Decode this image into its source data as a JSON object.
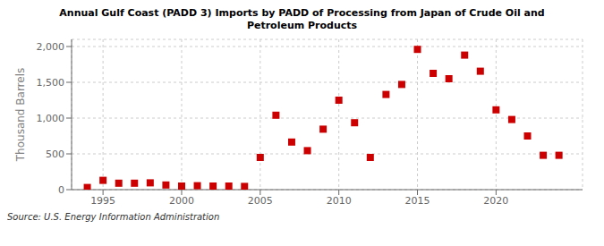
{
  "chart_data": {
    "type": "scatter",
    "title": "Annual Gulf Coast (PADD 3) Imports by PADD of Processing from Japan of Crude Oil and\nPetroleum Products",
    "ylabel": "Thousand Barrels",
    "annotation": "Source: U.S. Energy Information Administration",
    "x": [
      1994,
      1995,
      1996,
      1997,
      1998,
      1999,
      2000,
      2001,
      2002,
      2003,
      2004,
      2005,
      2006,
      2007,
      2008,
      2009,
      2010,
      2011,
      2012,
      2013,
      2014,
      2015,
      2016,
      2017,
      2018,
      2019,
      2020,
      2021,
      2022,
      2023,
      2024
    ],
    "values": [
      30,
      130,
      90,
      90,
      95,
      65,
      50,
      55,
      50,
      50,
      45,
      450,
      1040,
      665,
      545,
      845,
      1250,
      935,
      450,
      1330,
      1470,
      1960,
      1625,
      1550,
      1880,
      1655,
      1115,
      980,
      750,
      480,
      480
    ],
    "color": "#cc0000",
    "marker": "square",
    "xlim": [
      1993.0,
      2025.5
    ],
    "xticks": [
      1995,
      2000,
      2005,
      2010,
      2015,
      2020
    ],
    "ylim": [
      0,
      2100
    ],
    "yticks": [
      0,
      500,
      {
        "value": 1000,
        "label": "1,000"
      },
      {
        "value": 1500,
        "label": "1,500"
      },
      {
        "value": 2000,
        "label": "2,000"
      }
    ],
    "grid": true
  }
}
